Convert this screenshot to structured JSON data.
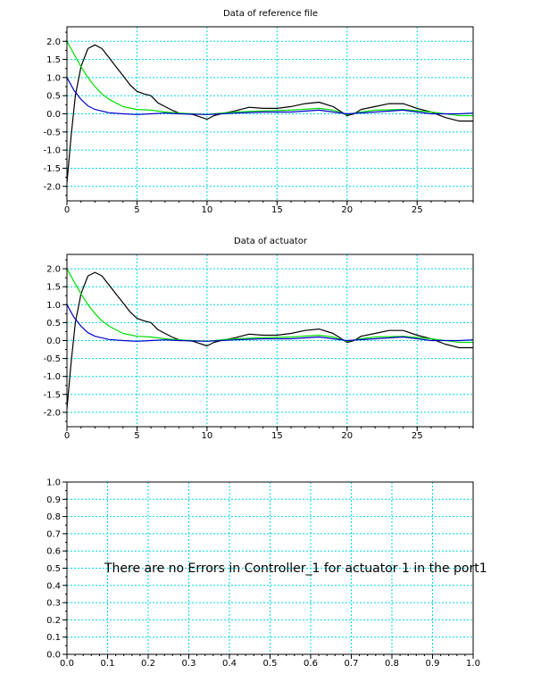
{
  "chart_data": [
    {
      "type": "line",
      "title": "Data of reference file",
      "xlim": [
        0,
        29
      ],
      "ylim": [
        -2.4,
        2.4
      ],
      "xticks": [
        0,
        5,
        10,
        15,
        20,
        25
      ],
      "xtick_labels": [
        "0",
        "5",
        "10",
        "15",
        "20",
        "25"
      ],
      "yticks": [
        2.0,
        1.5,
        1.0,
        0.5,
        0.0,
        -0.5,
        -1.0,
        -1.5,
        -2.0
      ],
      "ytick_labels": [
        "2.0",
        "1.5",
        "1.0",
        "0.5",
        "0.0",
        "-0.5",
        "-1.0",
        "-1.5",
        "-2.0"
      ],
      "grid": true,
      "series": [
        {
          "color": "#000000",
          "x": [
            0,
            0.3,
            0.6,
            1.0,
            1.5,
            2.0,
            2.5,
            3.0,
            3.5,
            4.0,
            4.5,
            5.0,
            5.5,
            6.0,
            6.5,
            7.0,
            7.5,
            8.0,
            9.0,
            10.0,
            10.5,
            11.0,
            12.0,
            13.0,
            14.0,
            15.0,
            16.0,
            17.0,
            18.0,
            19.0,
            20.0,
            20.5,
            21.0,
            22.0,
            23.0,
            24.0,
            25.0,
            26.0,
            27.0,
            28.0,
            29.0
          ],
          "y": [
            -1.9,
            -0.6,
            0.5,
            1.3,
            1.8,
            1.9,
            1.8,
            1.55,
            1.3,
            1.05,
            0.8,
            0.62,
            0.55,
            0.5,
            0.3,
            0.2,
            0.1,
            0.02,
            -0.02,
            -0.15,
            -0.05,
            0.0,
            0.08,
            0.18,
            0.15,
            0.15,
            0.2,
            0.28,
            0.32,
            0.2,
            -0.05,
            0.0,
            0.12,
            0.2,
            0.28,
            0.28,
            0.15,
            0.05,
            -0.1,
            -0.2,
            -0.2
          ]
        },
        {
          "color": "#00dd00",
          "x": [
            0,
            0.5,
            1.0,
            1.5,
            2.0,
            2.5,
            3.0,
            3.5,
            4.0,
            5.0,
            6.0,
            7.0,
            8.0,
            9.0,
            10.0,
            11.0,
            12.0,
            14.0,
            16.0,
            18.0,
            19.0,
            20.0,
            21.0,
            22.0,
            24.0,
            26.0,
            28.0,
            29.0
          ],
          "y": [
            2.0,
            1.65,
            1.3,
            1.0,
            0.75,
            0.55,
            0.4,
            0.3,
            0.2,
            0.12,
            0.1,
            0.05,
            0.02,
            0.0,
            -0.02,
            0.02,
            0.05,
            0.08,
            0.1,
            0.15,
            0.1,
            -0.02,
            0.05,
            0.1,
            0.12,
            0.05,
            -0.05,
            -0.05
          ]
        },
        {
          "color": "#0000cc",
          "x": [
            0,
            0.5,
            1.0,
            1.5,
            2.0,
            3.0,
            4.0,
            5.0,
            6.0,
            7.0,
            8.0,
            10.0,
            12.0,
            14.0,
            16.0,
            18.0,
            20.0,
            22.0,
            24.0,
            26.0,
            28.0,
            29.0
          ],
          "y": [
            1.0,
            0.65,
            0.4,
            0.22,
            0.12,
            0.03,
            0.0,
            -0.02,
            0.0,
            0.02,
            0.0,
            -0.02,
            0.02,
            0.05,
            0.05,
            0.1,
            0.0,
            0.05,
            0.1,
            0.0,
            0.0,
            0.02
          ]
        }
      ]
    },
    {
      "type": "line",
      "title": "Data of actuator",
      "xlim": [
        0,
        29
      ],
      "ylim": [
        -2.4,
        2.4
      ],
      "xticks": [
        0,
        5,
        10,
        15,
        20,
        25
      ],
      "xtick_labels": [
        "0",
        "5",
        "10",
        "15",
        "20",
        "25"
      ],
      "yticks": [
        2.0,
        1.5,
        1.0,
        0.5,
        0.0,
        -0.5,
        -1.0,
        -1.5,
        -2.0
      ],
      "ytick_labels": [
        "2.0",
        "1.5",
        "1.0",
        "0.5",
        "0.0",
        "-0.5",
        "-1.0",
        "-1.5",
        "-2.0"
      ],
      "grid": true,
      "series": [
        {
          "color": "#000000",
          "x": [
            0,
            0.3,
            0.6,
            1.0,
            1.5,
            2.0,
            2.5,
            3.0,
            3.5,
            4.0,
            4.5,
            5.0,
            5.5,
            6.0,
            6.5,
            7.0,
            7.5,
            8.0,
            9.0,
            10.0,
            10.5,
            11.0,
            12.0,
            13.0,
            14.0,
            15.0,
            16.0,
            17.0,
            18.0,
            19.0,
            20.0,
            20.5,
            21.0,
            22.0,
            23.0,
            24.0,
            25.0,
            26.0,
            27.0,
            28.0,
            29.0
          ],
          "y": [
            -1.9,
            -0.6,
            0.5,
            1.3,
            1.8,
            1.9,
            1.8,
            1.55,
            1.3,
            1.05,
            0.8,
            0.62,
            0.55,
            0.5,
            0.3,
            0.2,
            0.1,
            0.02,
            -0.02,
            -0.15,
            -0.05,
            0.0,
            0.08,
            0.18,
            0.15,
            0.15,
            0.2,
            0.28,
            0.32,
            0.2,
            -0.05,
            0.0,
            0.12,
            0.2,
            0.28,
            0.28,
            0.15,
            0.05,
            -0.1,
            -0.2,
            -0.2
          ]
        },
        {
          "color": "#00dd00",
          "x": [
            0,
            0.5,
            1.0,
            1.5,
            2.0,
            2.5,
            3.0,
            3.5,
            4.0,
            5.0,
            6.0,
            7.0,
            8.0,
            9.0,
            10.0,
            11.0,
            12.0,
            14.0,
            16.0,
            18.0,
            19.0,
            20.0,
            21.0,
            22.0,
            24.0,
            26.0,
            28.0,
            29.0
          ],
          "y": [
            2.0,
            1.65,
            1.3,
            1.0,
            0.75,
            0.55,
            0.4,
            0.3,
            0.2,
            0.12,
            0.1,
            0.05,
            0.02,
            0.0,
            -0.02,
            0.02,
            0.05,
            0.08,
            0.1,
            0.15,
            0.1,
            -0.02,
            0.05,
            0.1,
            0.12,
            0.05,
            -0.05,
            -0.05
          ]
        },
        {
          "color": "#0000cc",
          "x": [
            0,
            0.5,
            1.0,
            1.5,
            2.0,
            3.0,
            4.0,
            5.0,
            6.0,
            7.0,
            8.0,
            10.0,
            12.0,
            14.0,
            16.0,
            18.0,
            20.0,
            22.0,
            24.0,
            26.0,
            28.0,
            29.0
          ],
          "y": [
            1.0,
            0.65,
            0.4,
            0.22,
            0.12,
            0.03,
            0.0,
            -0.02,
            0.0,
            0.02,
            0.0,
            -0.02,
            0.02,
            0.05,
            0.05,
            0.1,
            0.0,
            0.05,
            0.1,
            0.0,
            0.0,
            0.02
          ]
        }
      ]
    },
    {
      "type": "line",
      "title": "",
      "xlim": [
        0,
        1
      ],
      "ylim": [
        0,
        1
      ],
      "xticks": [
        0,
        0.1,
        0.2,
        0.3,
        0.4,
        0.5,
        0.6,
        0.7,
        0.8,
        0.9,
        1.0
      ],
      "xtick_labels": [
        "0.0",
        "0.1",
        "0.2",
        "0.3",
        "0.4",
        "0.5",
        "0.6",
        "0.7",
        "0.8",
        "0.9",
        "1.0"
      ],
      "yticks": [
        1.0,
        0.9,
        0.8,
        0.7,
        0.6,
        0.5,
        0.4,
        0.3,
        0.2,
        0.1,
        0.0
      ],
      "ytick_labels": [
        "1.0",
        "0.9",
        "0.8",
        "0.7",
        "0.6",
        "0.5",
        "0.4",
        "0.3",
        "0.2",
        "0.1",
        "0.0"
      ],
      "grid": true,
      "annotation": "There are no Errors in Controller_1 for actuator 1 in the port1",
      "series": []
    }
  ]
}
